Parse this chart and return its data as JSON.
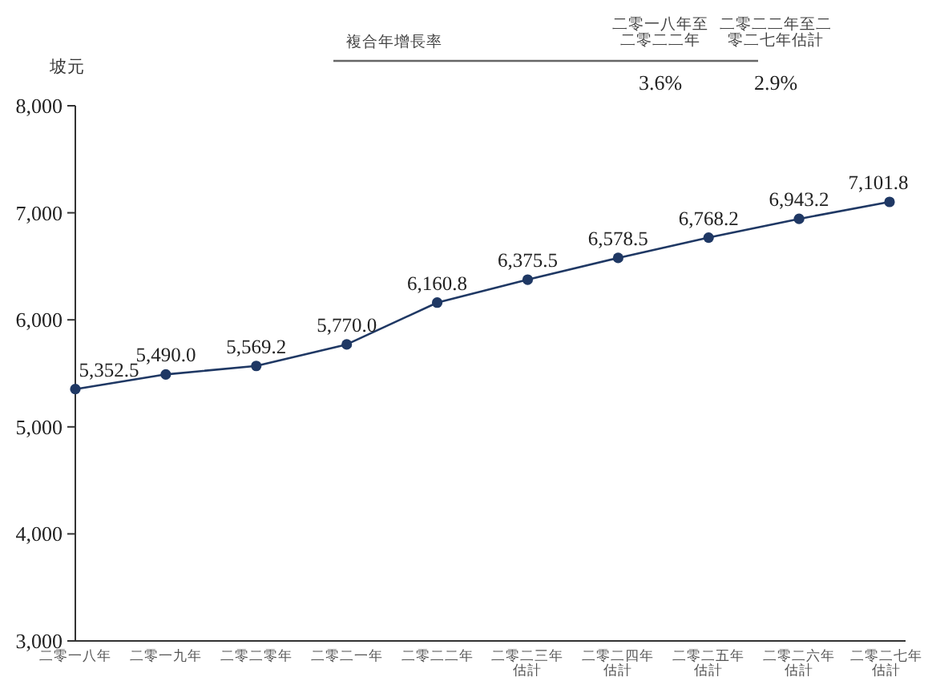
{
  "chart_data": {
    "type": "line",
    "ylabel": "坡元",
    "categories": [
      "二零一八年",
      "二零一九年",
      "二零二零年",
      "二零二一年",
      "二零二二年",
      "二零二三年估計",
      "二零二四年估計",
      "二零二五年估計",
      "二零二六年估計",
      "二零二七年估計"
    ],
    "series": [
      {
        "color": "#1f3864",
        "values": [
          5352.5,
          5490.0,
          5569.2,
          5770.0,
          6160.8,
          6375.5,
          6578.5,
          6768.2,
          6943.2,
          7101.8
        ]
      }
    ],
    "value_labels": [
      "5,352.5",
      "5,490.0",
      "5,569.2",
      "5,770.0",
      "6,160.8",
      "6,375.5",
      "6,578.5",
      "6,768.2",
      "6,943.2",
      "7,101.8"
    ],
    "ylim": [
      3000,
      8000
    ],
    "yticks": [
      {
        "value": 3000,
        "label": "3,000"
      },
      {
        "value": 4000,
        "label": "4,000"
      },
      {
        "value": 5000,
        "label": "5,000"
      },
      {
        "value": 6000,
        "label": "6,000"
      },
      {
        "value": 7000,
        "label": "7,000"
      },
      {
        "value": 8000,
        "label": "8,000"
      }
    ],
    "marker": "circle",
    "grid": false,
    "annotations": [
      "複合年增長率",
      "二零一八年至二零二二年",
      "二零二二年至二零二七年估計",
      "3.6%",
      "2.9%"
    ]
  }
}
